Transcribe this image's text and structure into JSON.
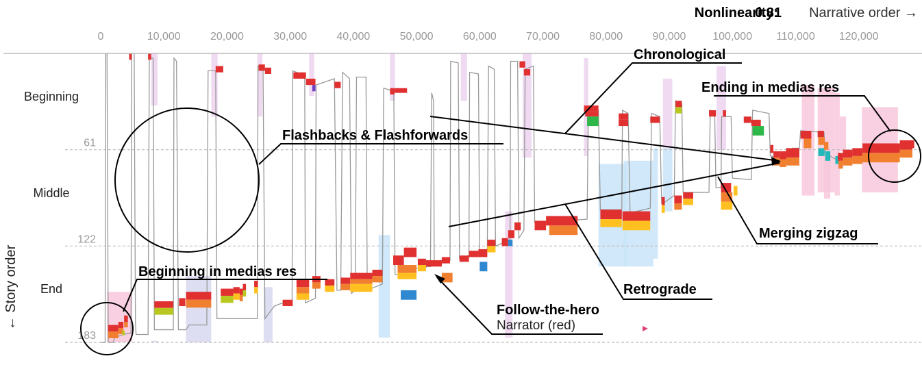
{
  "header": {
    "nonlinearity_label": "Nonlinearity:",
    "nonlinearity_value": "0.81",
    "narrative_order_label": "Narrative order →"
  },
  "chart_data": {
    "type": "line",
    "ylabel": "← Story order",
    "x_ticks": [
      "0",
      "10,000",
      "20,000",
      "30,000",
      "40,000",
      "50,000",
      "60,000",
      "70,000",
      "80,000",
      "90,000",
      "100,000",
      "110,000",
      "120,000"
    ],
    "y_ticks": [
      "61",
      "122",
      "183"
    ],
    "bands": [
      "Beginning",
      "Middle",
      "End"
    ],
    "xlim": [
      0,
      128500
    ],
    "ylim": [
      0,
      183
    ],
    "colors": {
      "narrator": "#e03030",
      "orange": "#f08030",
      "yellow": "#ffc020",
      "green": "#2eb84a",
      "lime": "#b8c820",
      "blue": "#3088d0",
      "teal": "#20b8b8",
      "purple": "#7040c0",
      "pink_bg": "#f8c8dc",
      "lavender_bg": "#d8d8f0",
      "lilac_bg": "#ecd4f0",
      "lightblue_bg": "#c8e4f8",
      "path": "#999999"
    },
    "annotations": [
      "Chronological",
      "Ending in medias res",
      "Flashbacks & Flashforwards",
      "Merging zigzag",
      "Retrograde",
      "Beginning in medias res",
      "Follow-the-hero",
      "Narrator (red)"
    ]
  }
}
